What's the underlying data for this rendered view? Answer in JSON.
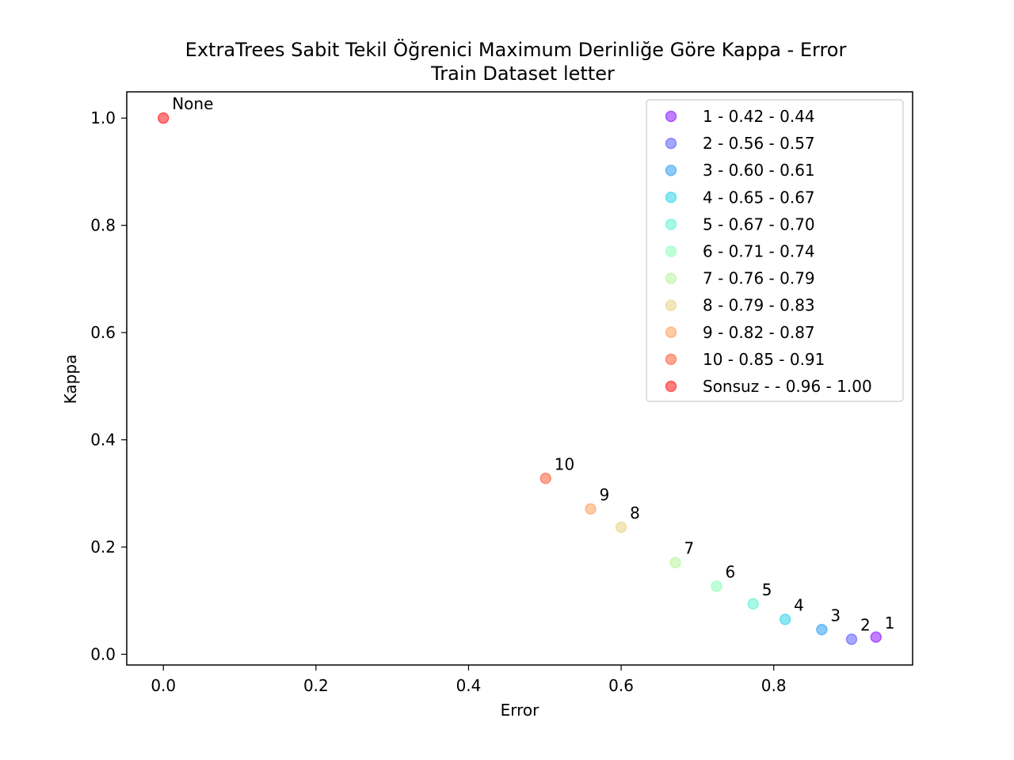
{
  "chart_data": {
    "type": "scatter",
    "title": "ExtraTrees Sabit Tekil Öğrenici Maximum Derinliğe Göre Kappa - Error",
    "subtitle": "Train Dataset  letter",
    "xlabel": "Error",
    "ylabel": "Kappa",
    "xlim": [
      -0.048,
      0.982
    ],
    "ylim": [
      -0.02,
      1.049
    ],
    "xticks": [
      0.0,
      0.2,
      0.4,
      0.6,
      0.8
    ],
    "yticks": [
      0.0,
      0.2,
      0.4,
      0.6,
      0.8,
      1.0
    ],
    "xtick_labels": [
      "0.0",
      "0.2",
      "0.4",
      "0.6",
      "0.8"
    ],
    "ytick_labels": [
      "0.0",
      "0.2",
      "0.4",
      "0.6",
      "0.8",
      "1.0"
    ],
    "grid": false,
    "legend_position": "top-right",
    "points": [
      {
        "label": "1",
        "legend": "1 - 0.42 - 0.44",
        "x": 0.934,
        "y": 0.032,
        "color": "#8000ff"
      },
      {
        "label": "2",
        "legend": "2 - 0.56 - 0.57",
        "x": 0.902,
        "y": 0.028,
        "color": "#4c50fc"
      },
      {
        "label": "3",
        "legend": "3 - 0.60 - 0.61",
        "x": 0.863,
        "y": 0.046,
        "color": "#1996f3"
      },
      {
        "label": "4",
        "legend": "4 - 0.65 - 0.67",
        "x": 0.815,
        "y": 0.065,
        "color": "#1acfe3"
      },
      {
        "label": "5",
        "legend": "5 - 0.67 - 0.70",
        "x": 0.773,
        "y": 0.094,
        "color": "#4df3ce"
      },
      {
        "label": "6",
        "legend": "6 - 0.71 - 0.74",
        "x": 0.725,
        "y": 0.127,
        "color": "#80ffb4"
      },
      {
        "label": "7",
        "legend": "7 - 0.76 - 0.79",
        "x": 0.671,
        "y": 0.171,
        "color": "#b2f396"
      },
      {
        "label": "8",
        "legend": "8 - 0.79 - 0.83",
        "x": 0.6,
        "y": 0.237,
        "color": "#e6cf73"
      },
      {
        "label": "9",
        "legend": "9 - 0.82 - 0.87",
        "x": 0.56,
        "y": 0.271,
        "color": "#ff964e"
      },
      {
        "label": "10",
        "legend": "10 - 0.85 - 0.91",
        "x": 0.501,
        "y": 0.328,
        "color": "#ff5028"
      },
      {
        "label": "None",
        "legend": "Sonsuz -  - 0.96 - 1.00",
        "x": 0.0,
        "y": 1.0,
        "color": "#ff0000"
      }
    ]
  }
}
